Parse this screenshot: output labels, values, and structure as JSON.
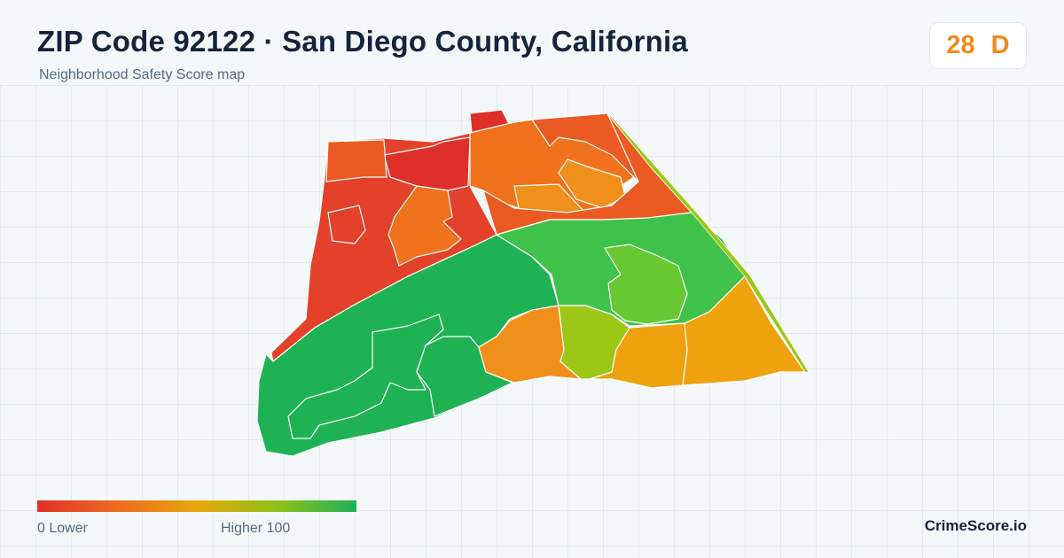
{
  "header": {
    "title": "ZIP Code 92122 · San Diego County, California",
    "subtitle": "Neighborhood Safety Score map"
  },
  "score": {
    "value": "28",
    "grade": "D",
    "color": "#ee8a1d"
  },
  "legend": {
    "low_label": "0  Lower",
    "high_label": "Higher  100",
    "colors": [
      "#e0302a",
      "#ee6a1f",
      "#e8a70c",
      "#8fc11a",
      "#1db156"
    ]
  },
  "brand": "CrimeScore.io",
  "map": {
    "region_colors": {
      "very_low": "#de2f2b",
      "low": "#e4412a",
      "low_mid": "#ea5a22",
      "mid_low": "#f0721c",
      "mid": "#f0901a",
      "mid_high": "#eea20e",
      "yellow_green": "#9ec617",
      "light_green": "#68c832",
      "green": "#3fc24c",
      "dark_green": "#1fb255"
    }
  }
}
